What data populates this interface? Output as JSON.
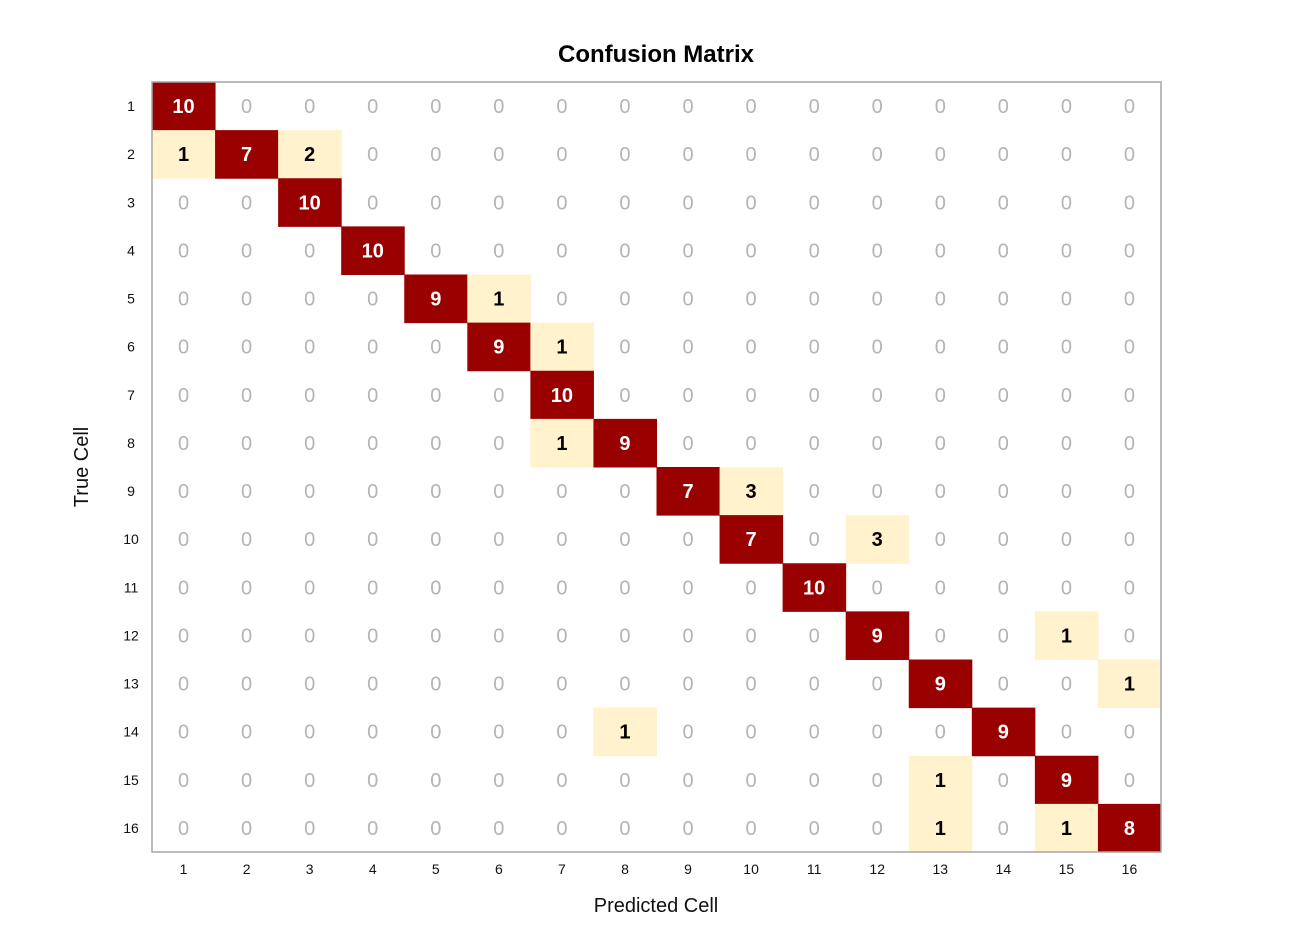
{
  "chart_data": {
    "type": "heatmap",
    "title": "Confusion Matrix",
    "xlabel": "Predicted Cell",
    "ylabel": "True Cell",
    "x_categories": [
      "1",
      "2",
      "3",
      "4",
      "5",
      "6",
      "7",
      "8",
      "9",
      "10",
      "11",
      "12",
      "13",
      "14",
      "15",
      "16"
    ],
    "y_categories": [
      "1",
      "2",
      "3",
      "4",
      "5",
      "6",
      "7",
      "8",
      "9",
      "10",
      "11",
      "12",
      "13",
      "14",
      "15",
      "16"
    ],
    "matrix": [
      [
        10,
        0,
        0,
        0,
        0,
        0,
        0,
        0,
        0,
        0,
        0,
        0,
        0,
        0,
        0,
        0
      ],
      [
        1,
        7,
        2,
        0,
        0,
        0,
        0,
        0,
        0,
        0,
        0,
        0,
        0,
        0,
        0,
        0
      ],
      [
        0,
        0,
        10,
        0,
        0,
        0,
        0,
        0,
        0,
        0,
        0,
        0,
        0,
        0,
        0,
        0
      ],
      [
        0,
        0,
        0,
        10,
        0,
        0,
        0,
        0,
        0,
        0,
        0,
        0,
        0,
        0,
        0,
        0
      ],
      [
        0,
        0,
        0,
        0,
        9,
        1,
        0,
        0,
        0,
        0,
        0,
        0,
        0,
        0,
        0,
        0
      ],
      [
        0,
        0,
        0,
        0,
        0,
        9,
        1,
        0,
        0,
        0,
        0,
        0,
        0,
        0,
        0,
        0
      ],
      [
        0,
        0,
        0,
        0,
        0,
        0,
        10,
        0,
        0,
        0,
        0,
        0,
        0,
        0,
        0,
        0
      ],
      [
        0,
        0,
        0,
        0,
        0,
        0,
        1,
        9,
        0,
        0,
        0,
        0,
        0,
        0,
        0,
        0
      ],
      [
        0,
        0,
        0,
        0,
        0,
        0,
        0,
        0,
        7,
        3,
        0,
        0,
        0,
        0,
        0,
        0
      ],
      [
        0,
        0,
        0,
        0,
        0,
        0,
        0,
        0,
        0,
        7,
        0,
        3,
        0,
        0,
        0,
        0
      ],
      [
        0,
        0,
        0,
        0,
        0,
        0,
        0,
        0,
        0,
        0,
        10,
        0,
        0,
        0,
        0,
        0
      ],
      [
        0,
        0,
        0,
        0,
        0,
        0,
        0,
        0,
        0,
        0,
        0,
        9,
        0,
        0,
        1,
        0
      ],
      [
        0,
        0,
        0,
        0,
        0,
        0,
        0,
        0,
        0,
        0,
        0,
        0,
        9,
        0,
        0,
        1
      ],
      [
        0,
        0,
        0,
        0,
        0,
        0,
        0,
        1,
        0,
        0,
        0,
        0,
        0,
        9,
        0,
        0
      ],
      [
        0,
        0,
        0,
        0,
        0,
        0,
        0,
        0,
        0,
        0,
        0,
        0,
        1,
        0,
        9,
        0
      ],
      [
        0,
        0,
        0,
        0,
        0,
        0,
        0,
        0,
        0,
        0,
        0,
        0,
        1,
        0,
        1,
        8
      ]
    ],
    "colors": {
      "diagonal": "#990000",
      "off_diagonal": "#fff2cc",
      "zero_text": "#b4b4b4",
      "diagonal_text": "#ffffff",
      "off_diagonal_text": "#000000",
      "frame": "#a6a6a6"
    },
    "grid": false,
    "legend": "none"
  }
}
